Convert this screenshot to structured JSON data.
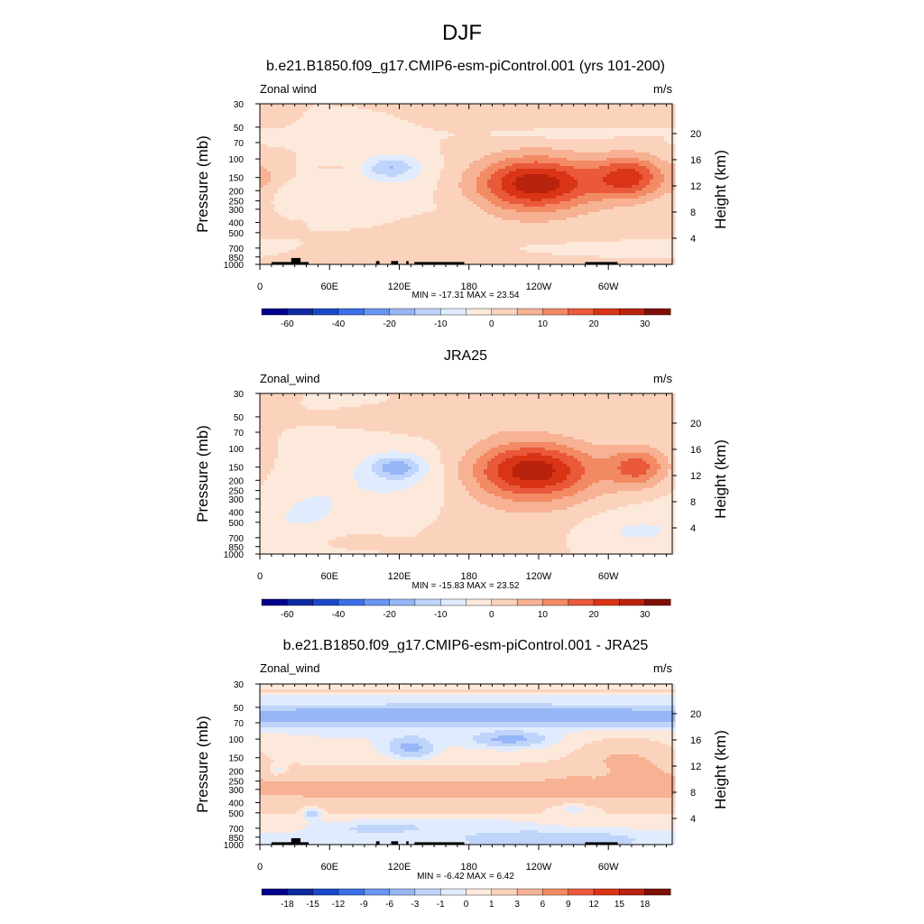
{
  "figure": {
    "title": "DJF",
    "height_label": "Height (km)",
    "pressure_label": "Pressure (mb)"
  },
  "panels": [
    {
      "title": "b.e21.B1850.f09_g17.CMIP6-esm-piControl.001 (yrs 101-200)",
      "left_label": "Zonal wind",
      "units": "m/s",
      "stats": "MIN = -17.31  MAX =  23.54",
      "cbar_key": "full",
      "show_topo": true,
      "features": [
        {
          "lon": 113,
          "p": 120,
          "v": -12,
          "wlon": 16,
          "wlog": 0.17
        },
        {
          "lon": 118,
          "p": 150,
          "v": -4,
          "wlon": 35,
          "wlog": 0.42
        },
        {
          "lon": 238,
          "p": 170,
          "v": 26,
          "wlon": 35,
          "wlog": 0.4
        },
        {
          "lon": 227,
          "p": 230,
          "v": 3,
          "wlon": 55,
          "wlog": 0.75
        },
        {
          "lon": 318,
          "p": 150,
          "v": 21,
          "wlon": 22,
          "wlog": 0.33
        },
        {
          "lon": 5,
          "p": 150,
          "v": 4,
          "wlon": 10,
          "wlog": 0.3
        },
        {
          "lon": 125,
          "p": 800,
          "v": 4,
          "wlon": 45,
          "wlog": 0.15
        },
        {
          "lon": 20,
          "p": 220,
          "v": -3,
          "wlon": 8,
          "wlog": 0.18
        },
        {
          "lon": 280,
          "p": 700,
          "v": -2,
          "wlon": 60,
          "wlog": 0.1
        },
        {
          "lon": 30,
          "p": 70,
          "v": -1.5,
          "wlon": 30,
          "wlog": 0.06
        },
        {
          "lon": 70,
          "p": 120,
          "v": 2,
          "wlon": 12,
          "wlog": 0.05
        },
        {
          "lon": 255,
          "p": 60,
          "v": -2,
          "wlon": 45,
          "wlog": 0.1
        },
        {
          "lon": 170,
          "p": 300,
          "v": -1.5,
          "wlon": 18,
          "wlog": 0.2
        }
      ]
    },
    {
      "title": "JRA25",
      "left_label": "Zonal_wind",
      "units": "m/s",
      "stats": "MIN = -15.83  MAX =  23.52",
      "cbar_key": "full",
      "show_topo": false,
      "features": [
        {
          "lon": 118,
          "p": 150,
          "v": -14,
          "wlon": 16,
          "wlog": 0.18
        },
        {
          "lon": 118,
          "p": 200,
          "v": -6,
          "wlon": 40,
          "wlog": 0.55
        },
        {
          "lon": 235,
          "p": 160,
          "v": 25,
          "wlon": 36,
          "wlog": 0.42
        },
        {
          "lon": 230,
          "p": 250,
          "v": 4,
          "wlon": 60,
          "wlog": 0.8
        },
        {
          "lon": 325,
          "p": 150,
          "v": 16,
          "wlon": 18,
          "wlog": 0.3
        },
        {
          "lon": 40,
          "p": 400,
          "v": -5,
          "wlon": 30,
          "wlog": 0.55
        },
        {
          "lon": 320,
          "p": 600,
          "v": -6,
          "wlon": 35,
          "wlog": 0.35
        },
        {
          "lon": 75,
          "p": 750,
          "v": 3,
          "wlon": 20,
          "wlog": 0.12
        },
        {
          "lon": 170,
          "p": 60,
          "v": 2.5,
          "wlon": 50,
          "wlog": 0.18
        }
      ]
    },
    {
      "title": "b.e21.B1850.f09_g17.CMIP6-esm-piControl.001 - JRA25",
      "left_label": "Zonal_wind",
      "units": "m/s",
      "stats": "MIN =  -6.42  MAX =  6.42",
      "cbar_key": "diff",
      "show_topo": true,
      "features": [
        {
          "lon": 180,
          "p": 60,
          "v": -5,
          "wlon": 400,
          "wlog": 0.14
        },
        {
          "lon": 200,
          "p": 55,
          "v": -1.5,
          "wlon": 25,
          "wlog": 0.05
        },
        {
          "lon": 180,
          "p": 35,
          "v": 1.5,
          "wlon": 400,
          "wlog": 0.04
        },
        {
          "lon": 180,
          "p": 300,
          "v": 3.5,
          "wlon": 400,
          "wlog": 0.35
        },
        {
          "lon": 130,
          "p": 120,
          "v": -4,
          "wlon": 12,
          "wlog": 0.15
        },
        {
          "lon": 215,
          "p": 100,
          "v": -4,
          "wlon": 20,
          "wlog": 0.1
        },
        {
          "lon": 315,
          "p": 160,
          "v": 3,
          "wlon": 30,
          "wlog": 0.35
        },
        {
          "lon": 290,
          "p": 200,
          "v": -2,
          "wlon": 8,
          "wlog": 0.1
        },
        {
          "lon": 15,
          "p": 200,
          "v": -2,
          "wlon": 6,
          "wlog": 0.1
        },
        {
          "lon": 45,
          "p": 500,
          "v": -3,
          "wlon": 6,
          "wlog": 0.1
        },
        {
          "lon": 250,
          "p": 900,
          "v": -3,
          "wlon": 50,
          "wlog": 0.12
        },
        {
          "lon": 270,
          "p": 450,
          "v": -2,
          "wlon": 15,
          "wlog": 0.1
        },
        {
          "lon": 100,
          "p": 700,
          "v": -1.5,
          "wlon": 30,
          "wlog": 0.12
        },
        {
          "lon": 180,
          "p": 650,
          "v": -1,
          "wlon": 40,
          "wlog": 0.12
        }
      ]
    }
  ],
  "colorbars": {
    "full": {
      "edges": [
        -70,
        -60,
        -50,
        -40,
        -30,
        -20,
        -15,
        -10,
        -5,
        0,
        5,
        10,
        15,
        20,
        25,
        30,
        35
      ],
      "colors": [
        "#00008a",
        "#0d2aa0",
        "#1a48c8",
        "#3a6fe6",
        "#6a95f2",
        "#97b6f7",
        "#bfd4fa",
        "#e0ebfd",
        "#fde9dc",
        "#fbd3bd",
        "#f7b193",
        "#f28a64",
        "#e9593a",
        "#d93415",
        "#b9220c",
        "#7e1006"
      ],
      "labels": [
        "-60",
        "-40",
        "-20",
        "-10",
        "0",
        "10",
        "20",
        "30"
      ],
      "label_edges": [
        1,
        3,
        5,
        7,
        9,
        11,
        13,
        15
      ]
    },
    "diff": {
      "edges": [
        -21,
        -18,
        -15,
        -12,
        -9,
        -6,
        -3,
        -1,
        0,
        1,
        3,
        6,
        9,
        12,
        15,
        18,
        21
      ],
      "colors": [
        "#00008a",
        "#0d2aa0",
        "#1a48c8",
        "#3a6fe6",
        "#6a95f2",
        "#97b6f7",
        "#bfd4fa",
        "#e0ebfd",
        "#fde9dc",
        "#fbd3bd",
        "#f7b193",
        "#f28a64",
        "#e9593a",
        "#d93415",
        "#b9220c",
        "#7e1006"
      ],
      "labels": [
        "-18",
        "-15",
        "-12",
        "-9",
        "-6",
        "-3",
        "-1",
        "0",
        "1",
        "3",
        "6",
        "9",
        "12",
        "15",
        "18"
      ],
      "label_edges": [
        1,
        2,
        3,
        4,
        5,
        6,
        7,
        8,
        9,
        10,
        11,
        12,
        13,
        14,
        15
      ]
    }
  },
  "chart_data": [
    {
      "type": "heatmap",
      "title": "b.e21.B1850.f09_g17.CMIP6-esm-piControl.001 (yrs 101-200)",
      "variable": "Zonal wind",
      "units": "m/s",
      "xlabel": "",
      "ylabel": "Pressure (mb)",
      "ylabel_right": "Height (km)",
      "x_ticks": [
        "0",
        "60E",
        "120E",
        "180",
        "120W",
        "60W"
      ],
      "y_ticks": [
        "30",
        "50",
        "70",
        "100",
        "150",
        "200",
        "250",
        "300",
        "400",
        "500",
        "700",
        "850",
        "1000"
      ],
      "y_right_ticks": [
        "20",
        "16",
        "12",
        "8",
        "4"
      ],
      "xlim": [
        0,
        355
      ],
      "ylim": [
        1000,
        30
      ],
      "y_scale": "log",
      "min": -17.31,
      "max": 23.54
    },
    {
      "type": "heatmap",
      "title": "JRA25",
      "variable": "Zonal_wind",
      "units": "m/s",
      "xlabel": "",
      "ylabel": "Pressure (mb)",
      "ylabel_right": "Height (km)",
      "x_ticks": [
        "0",
        "60E",
        "120E",
        "180",
        "120W",
        "60W"
      ],
      "y_ticks": [
        "30",
        "50",
        "70",
        "100",
        "150",
        "200",
        "250",
        "300",
        "400",
        "500",
        "700",
        "850",
        "1000"
      ],
      "y_right_ticks": [
        "20",
        "16",
        "12",
        "8",
        "4"
      ],
      "xlim": [
        0,
        355
      ],
      "ylim": [
        1000,
        30
      ],
      "y_scale": "log",
      "min": -15.83,
      "max": 23.52
    },
    {
      "type": "heatmap",
      "title": "b.e21.B1850.f09_g17.CMIP6-esm-piControl.001 - JRA25",
      "variable": "Zonal_wind",
      "units": "m/s",
      "xlabel": "",
      "ylabel": "Pressure (mb)",
      "ylabel_right": "Height (km)",
      "x_ticks": [
        "0",
        "60E",
        "120E",
        "180",
        "120W",
        "60W"
      ],
      "y_ticks": [
        "30",
        "50",
        "70",
        "100",
        "150",
        "200",
        "250",
        "300",
        "400",
        "500",
        "700",
        "850",
        "1000"
      ],
      "y_right_ticks": [
        "20",
        "16",
        "12",
        "8",
        "4"
      ],
      "xlim": [
        0,
        355
      ],
      "ylim": [
        1000,
        30
      ],
      "y_scale": "log",
      "min": -6.42,
      "max": 6.42
    }
  ],
  "axes": {
    "x_ticks": [
      {
        "lon": 0,
        "label": "0"
      },
      {
        "lon": 60,
        "label": "60E"
      },
      {
        "lon": 120,
        "label": "120E"
      },
      {
        "lon": 180,
        "label": "180"
      },
      {
        "lon": 240,
        "label": "120W"
      },
      {
        "lon": 300,
        "label": "60W"
      }
    ],
    "p_ticks": [
      30,
      50,
      70,
      100,
      150,
      200,
      250,
      300,
      400,
      500,
      700,
      850,
      1000
    ],
    "h_ticks": [
      20,
      16,
      12,
      8,
      4
    ],
    "xlim": [
      0,
      355
    ],
    "plim": [
      30,
      1000
    ]
  },
  "topography": [
    {
      "lon0": 10,
      "lon1": 42,
      "p": 950
    },
    {
      "lon0": 27,
      "lon1": 35,
      "p": 870
    },
    {
      "lon0": 100,
      "lon1": 103,
      "p": 930
    },
    {
      "lon0": 113,
      "lon1": 119,
      "p": 930
    },
    {
      "lon0": 126,
      "lon1": 128,
      "p": 930
    },
    {
      "lon0": 133,
      "lon1": 176,
      "p": 950
    },
    {
      "lon0": 280,
      "lon1": 308,
      "p": 950
    }
  ]
}
